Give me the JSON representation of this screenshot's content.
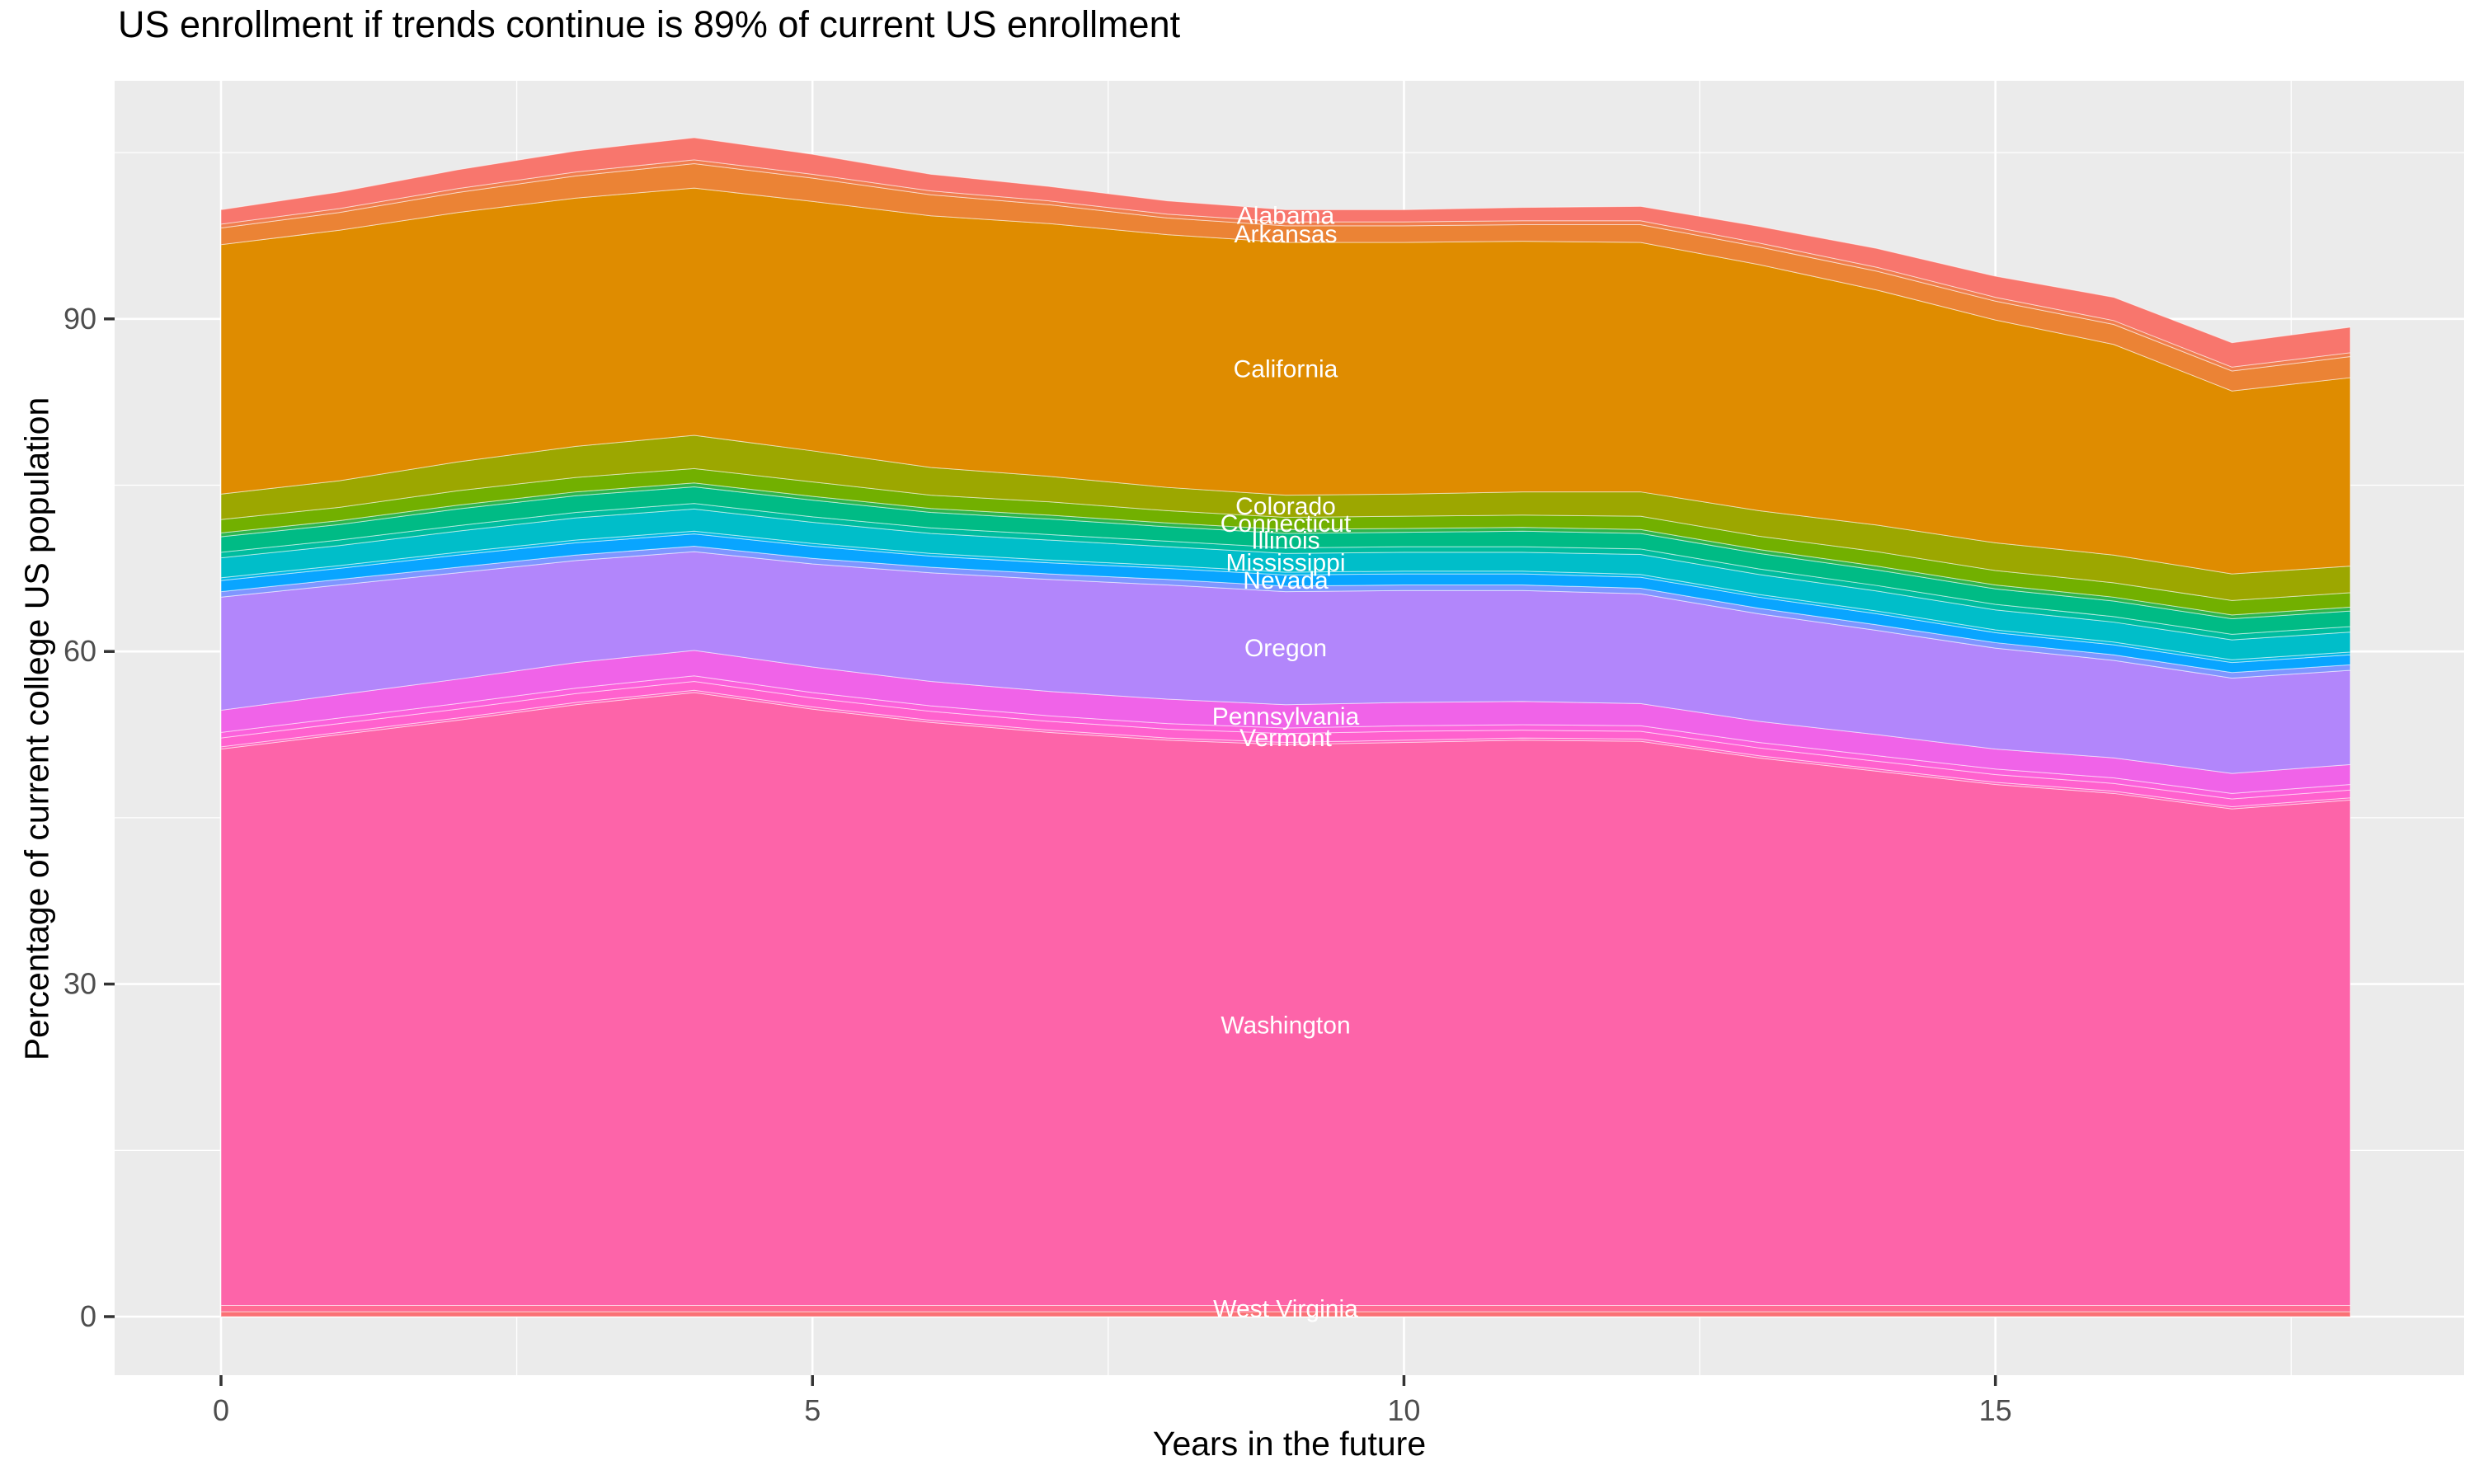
{
  "title": "US enrollment if trends continue is 89% of current US enrollment",
  "axes": {
    "x": {
      "label": "Years in the future",
      "tick_labels": [
        "0",
        "5",
        "10",
        "15"
      ],
      "tick_values": [
        0,
        5,
        10,
        15
      ],
      "minor_values": [
        2.5,
        7.5,
        12.5,
        17.5
      ],
      "range": [
        0,
        18
      ]
    },
    "y": {
      "label": "Percentage of current college US population",
      "tick_labels": [
        "0",
        "30",
        "60",
        "90"
      ],
      "tick_values": [
        0,
        30,
        60,
        90
      ],
      "minor_values": [
        15,
        45,
        75,
        105
      ]
    }
  },
  "colors": {
    "panel_background": "#EBEBEB",
    "gridline": "#FFFFFF",
    "tick_text": "#4D4D4D",
    "tick_mark": "#333333",
    "title_text": "#000000",
    "area_label_text": "#FFFFFF"
  },
  "chart_data": {
    "type": "area",
    "stacked": true,
    "stack_order": "first series listed is the top band",
    "title": "US enrollment if trends continue is 89% of current US enrollment",
    "xlabel": "Years in the future",
    "ylabel": "Percentage of current college US population",
    "ylim": [
      0,
      111
    ],
    "grid": true,
    "legend": false,
    "label_x": 9,
    "x": [
      0,
      1,
      2,
      3,
      4,
      5,
      6,
      7,
      8,
      9,
      10,
      11,
      12,
      13,
      14,
      15,
      16,
      17,
      18
    ],
    "series": [
      {
        "name": "Alabama",
        "label": "Alabama",
        "color": "#F8766D",
        "values": [
          1.3,
          1.5,
          1.7,
          1.9,
          2.0,
          1.8,
          1.5,
          1.3,
          1.2,
          1.1,
          1.1,
          1.2,
          1.3,
          1.5,
          1.7,
          1.9,
          2.1,
          2.2,
          2.3
        ]
      },
      {
        "name": "unlabeled-states-1",
        "label": null,
        "color": "#F07E4E",
        "values": [
          0.35,
          0.35,
          0.35,
          0.35,
          0.35,
          0.35,
          0.35,
          0.35,
          0.35,
          0.35,
          0.35,
          0.35,
          0.35,
          0.35,
          0.35,
          0.35,
          0.35,
          0.35,
          0.35
        ]
      },
      {
        "name": "Arkansas",
        "label": "Arkansas",
        "color": "#EB8335",
        "values": [
          1.5,
          1.6,
          1.8,
          2.0,
          2.2,
          2.1,
          1.9,
          1.7,
          1.5,
          1.5,
          1.5,
          1.5,
          1.6,
          1.6,
          1.7,
          1.7,
          1.8,
          1.8,
          1.9
        ]
      },
      {
        "name": "California",
        "label": "California",
        "color": "#DF8C00",
        "values": [
          22.5,
          22.6,
          22.5,
          22.4,
          22.3,
          22.5,
          22.7,
          22.8,
          22.8,
          22.8,
          22.7,
          22.6,
          22.5,
          22.2,
          21.2,
          20.1,
          19.0,
          16.5,
          17.0
        ]
      },
      {
        "name": "Colorado",
        "label": "Colorado",
        "color": "#9CA700",
        "values": [
          2.3,
          2.4,
          2.6,
          2.8,
          3.0,
          2.8,
          2.5,
          2.3,
          2.1,
          2.0,
          2.0,
          2.1,
          2.2,
          2.3,
          2.4,
          2.5,
          2.5,
          2.4,
          2.4
        ]
      },
      {
        "name": "Connecticut",
        "label": "Connecticut",
        "color": "#72B000",
        "values": [
          1.2,
          1.2,
          1.3,
          1.3,
          1.3,
          1.3,
          1.2,
          1.2,
          1.1,
          1.1,
          1.1,
          1.1,
          1.2,
          1.2,
          1.3,
          1.3,
          1.3,
          1.3,
          1.3
        ]
      },
      {
        "name": "unlabeled-states-2",
        "label": null,
        "color": "#2FB64E",
        "values": [
          0.35,
          0.35,
          0.35,
          0.35,
          0.35,
          0.35,
          0.35,
          0.35,
          0.35,
          0.35,
          0.35,
          0.35,
          0.35,
          0.35,
          0.35,
          0.35,
          0.35,
          0.35,
          0.35
        ]
      },
      {
        "name": "Illinois",
        "label": "Illinois",
        "color": "#00BB85",
        "values": [
          1.4,
          1.4,
          1.5,
          1.5,
          1.5,
          1.5,
          1.4,
          1.4,
          1.3,
          1.3,
          1.3,
          1.4,
          1.4,
          1.4,
          1.4,
          1.4,
          1.4,
          1.4,
          1.4
        ]
      },
      {
        "name": "unlabeled-states-3",
        "label": null,
        "color": "#00BD9F",
        "values": [
          0.5,
          0.5,
          0.5,
          0.5,
          0.5,
          0.5,
          0.5,
          0.5,
          0.5,
          0.5,
          0.5,
          0.5,
          0.5,
          0.5,
          0.5,
          0.5,
          0.5,
          0.5,
          0.5
        ]
      },
      {
        "name": "Mississippi",
        "label": "Mississippi",
        "color": "#00BEC9",
        "values": [
          1.8,
          1.8,
          1.9,
          2.0,
          2.0,
          1.9,
          1.8,
          1.8,
          1.7,
          1.7,
          1.7,
          1.7,
          1.8,
          1.8,
          1.8,
          1.8,
          1.8,
          1.8,
          1.8
        ]
      },
      {
        "name": "unlabeled-states-4",
        "label": null,
        "color": "#00B8E5",
        "values": [
          0.25,
          0.25,
          0.25,
          0.25,
          0.25,
          0.25,
          0.25,
          0.25,
          0.25,
          0.25,
          0.25,
          0.25,
          0.25,
          0.25,
          0.25,
          0.25,
          0.25,
          0.25,
          0.25
        ]
      },
      {
        "name": "Nevada",
        "label": "Nevada",
        "color": "#09A5FF",
        "values": [
          1.0,
          1.0,
          1.1,
          1.1,
          1.1,
          1.1,
          1.0,
          1.0,
          1.0,
          1.0,
          1.0,
          1.0,
          1.0,
          1.0,
          1.0,
          0.9,
          0.9,
          0.9,
          0.9
        ]
      },
      {
        "name": "unlabeled-states-5",
        "label": null,
        "color": "#7F96FF",
        "values": [
          0.5,
          0.5,
          0.5,
          0.5,
          0.5,
          0.5,
          0.5,
          0.5,
          0.5,
          0.5,
          0.5,
          0.5,
          0.5,
          0.5,
          0.5,
          0.5,
          0.5,
          0.5,
          0.5
        ]
      },
      {
        "name": "Oregon",
        "label": "Oregon",
        "color": "#B286FB",
        "values": [
          10.2,
          9.9,
          9.6,
          9.2,
          8.9,
          9.3,
          9.8,
          10.1,
          10.3,
          10.2,
          10.1,
          10.0,
          9.9,
          9.7,
          9.4,
          9.1,
          8.8,
          8.6,
          8.5
        ]
      },
      {
        "name": "Pennsylvania",
        "label": "Pennsylvania",
        "color": "#F063E8",
        "values": [
          2.0,
          2.1,
          2.2,
          2.3,
          2.3,
          2.3,
          2.2,
          2.2,
          2.2,
          2.1,
          2.1,
          2.1,
          2.0,
          1.9,
          1.9,
          1.8,
          1.8,
          1.8,
          1.8
        ]
      },
      {
        "name": "unlabeled-states-6",
        "label": null,
        "color": "#FB61DC",
        "values": [
          0.5,
          0.5,
          0.5,
          0.5,
          0.5,
          0.5,
          0.5,
          0.5,
          0.5,
          0.5,
          0.5,
          0.5,
          0.5,
          0.5,
          0.5,
          0.5,
          0.5,
          0.5,
          0.5
        ]
      },
      {
        "name": "Vermont",
        "label": "Vermont",
        "color": "#FF61CE",
        "values": [
          0.8,
          0.8,
          0.8,
          0.8,
          0.8,
          0.8,
          0.8,
          0.8,
          0.8,
          0.8,
          0.8,
          0.7,
          0.7,
          0.7,
          0.7,
          0.7,
          0.7,
          0.7,
          0.7
        ]
      },
      {
        "name": "unlabeled-states-7",
        "label": null,
        "color": "#FF63BE",
        "values": [
          0.2,
          0.2,
          0.2,
          0.2,
          0.2,
          0.2,
          0.2,
          0.2,
          0.2,
          0.2,
          0.2,
          0.2,
          0.2,
          0.2,
          0.2,
          0.2,
          0.2,
          0.2,
          0.2
        ]
      },
      {
        "name": "Washington",
        "label": "Washington",
        "color": "#FD64A9",
        "values": [
          50.2,
          51.5,
          52.8,
          54.2,
          55.3,
          53.8,
          52.6,
          51.7,
          51.0,
          50.6,
          50.8,
          51.0,
          50.9,
          49.4,
          48.2,
          47.0,
          46.2,
          44.8,
          45.6
        ]
      },
      {
        "name": "West Virginia",
        "label": "West Virginia",
        "color": "#FF6B93",
        "values": [
          0.55,
          0.55,
          0.55,
          0.55,
          0.55,
          0.55,
          0.55,
          0.55,
          0.55,
          0.55,
          0.55,
          0.55,
          0.55,
          0.55,
          0.55,
          0.55,
          0.55,
          0.55,
          0.55
        ]
      },
      {
        "name": "unlabeled-states-8",
        "label": null,
        "color": "#FA7175",
        "values": [
          0.45,
          0.45,
          0.45,
          0.45,
          0.45,
          0.45,
          0.45,
          0.45,
          0.45,
          0.45,
          0.45,
          0.45,
          0.45,
          0.45,
          0.45,
          0.45,
          0.45,
          0.45,
          0.45
        ]
      }
    ]
  }
}
